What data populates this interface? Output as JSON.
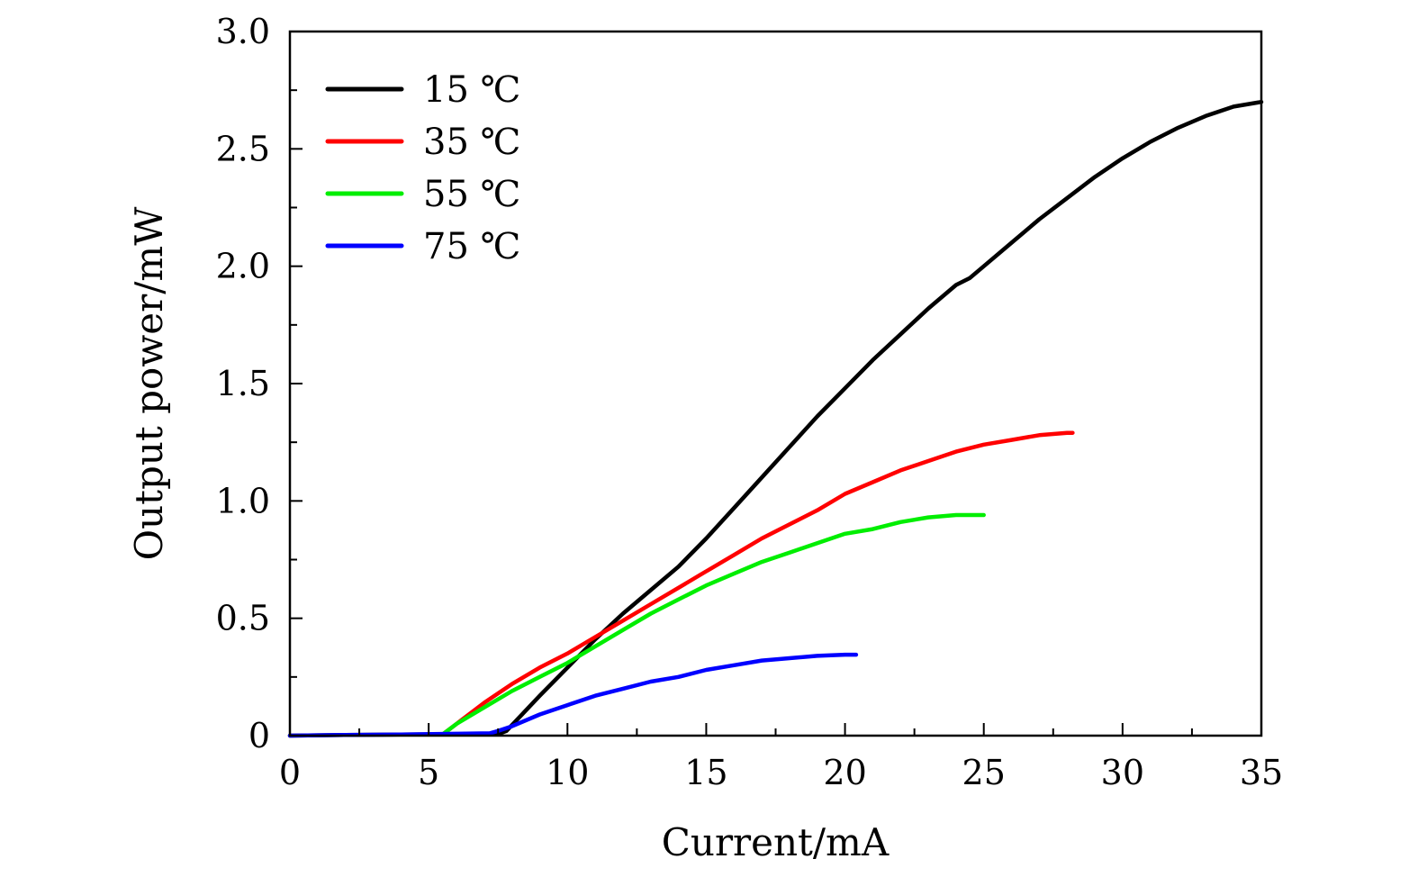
{
  "chart_data": {
    "type": "line",
    "title": "",
    "xlabel": "Current/mA",
    "ylabel": "Output power/mW",
    "xlim": [
      0,
      35
    ],
    "ylim": [
      0,
      3.0
    ],
    "xticks": [
      0,
      5,
      10,
      15,
      20,
      25,
      30,
      35
    ],
    "xtick_labels": [
      "0",
      "5",
      "10",
      "15",
      "20",
      "25",
      "30",
      "35"
    ],
    "yticks": [
      0,
      0.5,
      1.0,
      1.5,
      2.0,
      2.5,
      3.0
    ],
    "ytick_labels": [
      "0",
      "0.5",
      "1.0",
      "1.5",
      "2.0",
      "2.5",
      "3.0"
    ],
    "grid": false,
    "legend_position": "top-left",
    "series": [
      {
        "name": "15 ℃",
        "color": "#000000",
        "x": [
          0,
          2,
          4,
          6,
          7.5,
          7.8,
          9,
          10,
          11,
          12,
          13,
          14,
          15,
          16,
          17,
          18,
          19,
          20,
          21,
          22,
          23,
          24,
          24.5,
          25,
          26,
          27,
          28,
          29,
          30,
          31,
          32,
          33,
          34,
          35
        ],
        "y": [
          0,
          0.003,
          0.005,
          0.006,
          0.006,
          0.02,
          0.17,
          0.29,
          0.41,
          0.52,
          0.62,
          0.72,
          0.84,
          0.97,
          1.1,
          1.23,
          1.36,
          1.48,
          1.6,
          1.71,
          1.82,
          1.92,
          1.95,
          2.0,
          2.1,
          2.2,
          2.29,
          2.38,
          2.46,
          2.53,
          2.59,
          2.64,
          2.68,
          2.7
        ]
      },
      {
        "name": "35 ℃",
        "color": "#ff0000",
        "x": [
          5.5,
          6,
          7,
          8,
          9,
          10,
          11,
          12,
          13,
          14,
          15,
          16,
          17,
          18,
          19,
          20,
          21,
          22,
          23,
          24,
          25,
          26,
          27,
          28,
          28.2
        ],
        "y": [
          0.005,
          0.05,
          0.14,
          0.22,
          0.29,
          0.35,
          0.42,
          0.49,
          0.56,
          0.63,
          0.7,
          0.77,
          0.84,
          0.9,
          0.96,
          1.03,
          1.08,
          1.13,
          1.17,
          1.21,
          1.24,
          1.26,
          1.28,
          1.29,
          1.29
        ]
      },
      {
        "name": "55 ℃",
        "color": "#00ee00",
        "x": [
          5.5,
          6,
          7,
          8,
          9,
          10,
          11,
          12,
          13,
          14,
          15,
          16,
          17,
          18,
          19,
          20,
          21,
          22,
          23,
          24,
          25
        ],
        "y": [
          0.005,
          0.05,
          0.12,
          0.19,
          0.25,
          0.31,
          0.38,
          0.45,
          0.52,
          0.58,
          0.64,
          0.69,
          0.74,
          0.78,
          0.82,
          0.86,
          0.88,
          0.91,
          0.93,
          0.94,
          0.94
        ]
      },
      {
        "name": "75 ℃",
        "color": "#0000ff",
        "x": [
          0,
          2,
          4,
          6,
          7.2,
          7.5,
          8,
          9,
          10,
          11,
          12,
          13,
          14,
          15,
          16,
          17,
          18,
          19,
          20,
          20.4
        ],
        "y": [
          0,
          0.003,
          0.005,
          0.008,
          0.01,
          0.02,
          0.04,
          0.09,
          0.13,
          0.17,
          0.2,
          0.23,
          0.25,
          0.28,
          0.3,
          0.32,
          0.33,
          0.34,
          0.345,
          0.345
        ]
      }
    ]
  }
}
